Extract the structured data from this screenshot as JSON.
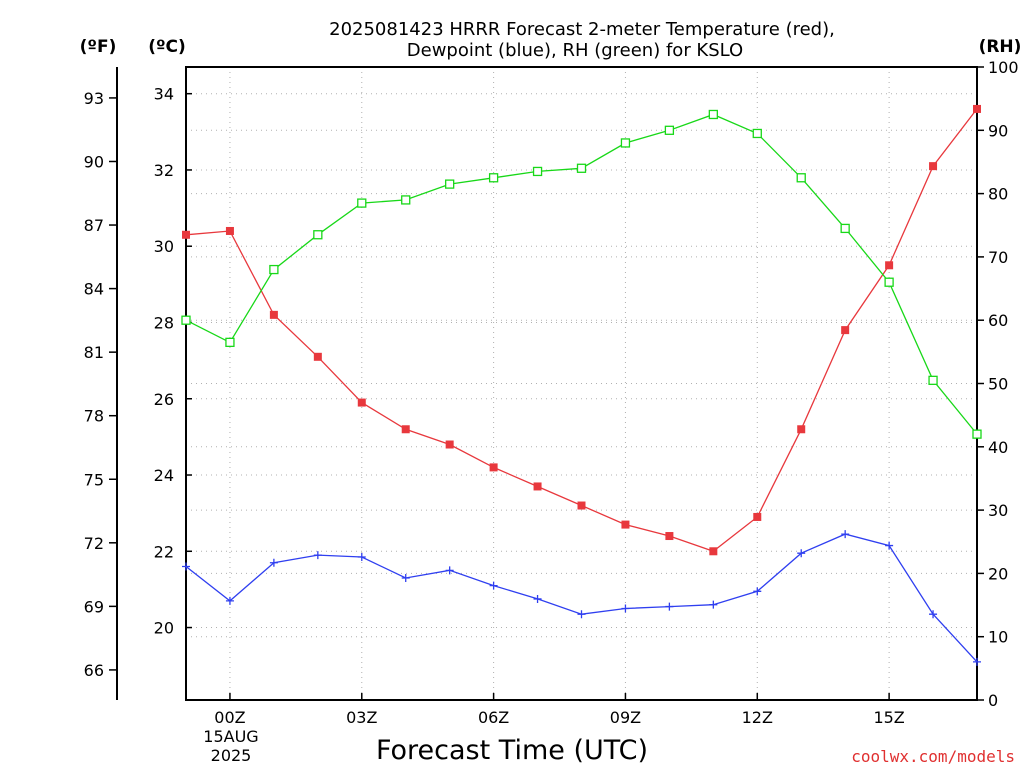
{
  "chart_data": {
    "type": "line",
    "title_lines": [
      "2025081423 HRRR Forecast 2-meter Temperature (red),",
      "Dewpoint (blue), RH (green) for KSLO"
    ],
    "xlabel": "Forecast Time (UTC)",
    "x": [
      -1,
      0,
      1,
      2,
      3,
      4,
      5,
      6,
      7,
      8,
      9,
      10,
      11,
      12,
      13,
      14,
      15,
      16,
      17
    ],
    "xlim": [
      -1,
      17
    ],
    "x_ticks": [
      {
        "x": 0,
        "label": "00Z"
      },
      {
        "x": 3,
        "label": "03Z"
      },
      {
        "x": 6,
        "label": "06Z"
      },
      {
        "x": 9,
        "label": "09Z"
      },
      {
        "x": 12,
        "label": "12Z"
      },
      {
        "x": 15,
        "label": "15Z"
      }
    ],
    "x_date_lines": [
      "15AUG",
      "2025"
    ],
    "left_axis_c": {
      "unit_label": "(ºC)",
      "ylim": [
        18.1,
        34.7
      ],
      "ticks": [
        20,
        22,
        24,
        26,
        28,
        30,
        32,
        34
      ]
    },
    "left_axis_f": {
      "unit_label": "(ºF)",
      "ticks": [
        66,
        69,
        72,
        75,
        78,
        81,
        84,
        87,
        90,
        93
      ]
    },
    "right_axis": {
      "unit_label": "(RH)",
      "ylim": [
        0,
        100
      ],
      "ticks": [
        0,
        10,
        20,
        30,
        40,
        50,
        60,
        70,
        80,
        90,
        100
      ]
    },
    "grid": true,
    "series": [
      {
        "name": "Temperature",
        "axis": "celsius",
        "color": "#e8383d",
        "marker": "filled-square",
        "values": [
          30.3,
          30.4,
          28.2,
          27.1,
          25.9,
          25.2,
          24.8,
          24.2,
          23.7,
          23.2,
          22.7,
          22.4,
          22.0,
          22.9,
          25.2,
          27.8,
          29.5,
          32.1,
          33.6
        ]
      },
      {
        "name": "Dewpoint",
        "axis": "celsius",
        "color": "#2f3ff0",
        "marker": "plus",
        "values": [
          21.6,
          20.7,
          21.7,
          21.9,
          21.85,
          21.3,
          21.5,
          21.1,
          20.75,
          20.35,
          20.5,
          20.55,
          20.6,
          20.95,
          21.95,
          22.45,
          22.15,
          20.35,
          19.1
        ]
      },
      {
        "name": "RH",
        "axis": "rh",
        "color": "#18d818",
        "marker": "open-square",
        "values": [
          60,
          56.5,
          68,
          73.5,
          78.5,
          79,
          81.5,
          82.5,
          83.5,
          84,
          88,
          90,
          92.5,
          89.5,
          82.5,
          74.5,
          66,
          50.5,
          42
        ]
      }
    ]
  },
  "credit": "coolwx.com/models"
}
